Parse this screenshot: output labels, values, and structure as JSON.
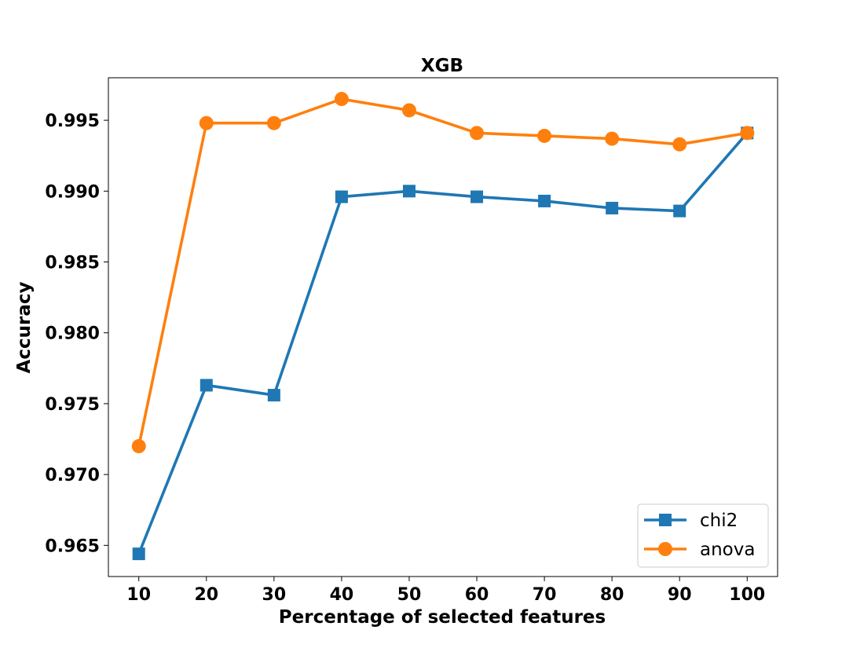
{
  "chart_data": {
    "type": "line",
    "title": "XGB",
    "xlabel": "Percentage of selected features",
    "ylabel": "Accuracy",
    "x": [
      10,
      20,
      30,
      40,
      50,
      60,
      70,
      80,
      90,
      100
    ],
    "x_ticks": [
      "10",
      "20",
      "30",
      "40",
      "50",
      "60",
      "70",
      "80",
      "90",
      "100"
    ],
    "y_ticks": [
      "0.965",
      "0.970",
      "0.975",
      "0.980",
      "0.985",
      "0.990",
      "0.995"
    ],
    "y_tick_values": [
      0.965,
      0.97,
      0.975,
      0.98,
      0.985,
      0.99,
      0.995
    ],
    "xlim": [
      5.5,
      104.5
    ],
    "ylim": [
      0.9628,
      0.998
    ],
    "grid": false,
    "legend_position": "lower-right",
    "series": [
      {
        "name": "chi2",
        "marker": "square",
        "color": "#1f77b4",
        "values": [
          0.9644,
          0.9763,
          0.9756,
          0.9896,
          0.99,
          0.9896,
          0.9893,
          0.9888,
          0.9886,
          0.9941
        ]
      },
      {
        "name": "anova",
        "marker": "circle",
        "color": "#ff7f0e",
        "values": [
          0.972,
          0.9948,
          0.9948,
          0.9965,
          0.9957,
          0.9941,
          0.9939,
          0.9937,
          0.9933,
          0.9941
        ]
      }
    ]
  }
}
